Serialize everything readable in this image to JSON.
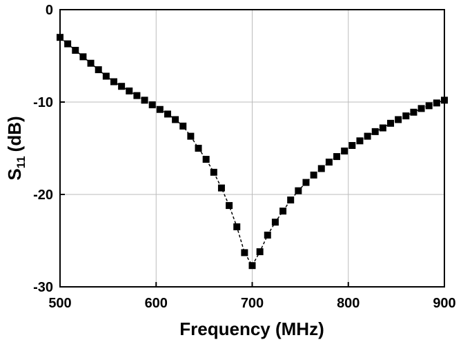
{
  "chart_data": {
    "type": "line",
    "x_label": "Frequency (MHz)",
    "y_label": "S",
    "y_label_subscript": "11",
    "y_label_suffix": "(dB)",
    "x": [
      500,
      508,
      516,
      524,
      532,
      540,
      548,
      556,
      564,
      572,
      580,
      588,
      596,
      604,
      612,
      620,
      628,
      636,
      644,
      652,
      660,
      668,
      676,
      684,
      692,
      700,
      708,
      716,
      724,
      732,
      740,
      748,
      756,
      764,
      772,
      780,
      788,
      796,
      804,
      812,
      820,
      828,
      836,
      844,
      852,
      860,
      868,
      876,
      884,
      892,
      900
    ],
    "series": [
      {
        "color": "#000000",
        "values": [
          -3.0,
          -3.7,
          -4.4,
          -5.1,
          -5.8,
          -6.5,
          -7.2,
          -7.8,
          -8.3,
          -8.8,
          -9.3,
          -9.8,
          -10.3,
          -10.8,
          -11.3,
          -11.9,
          -12.6,
          -13.7,
          -15.0,
          -16.2,
          -17.6,
          -19.3,
          -21.2,
          -23.5,
          -26.3,
          -27.7,
          -26.2,
          -24.4,
          -23.0,
          -21.8,
          -20.6,
          -19.6,
          -18.7,
          -17.9,
          -17.2,
          -16.5,
          -15.9,
          -15.3,
          -14.7,
          -14.2,
          -13.7,
          -13.2,
          -12.8,
          -12.3,
          -11.9,
          -11.5,
          -11.1,
          -10.7,
          -10.4,
          -10.1,
          -9.8
        ]
      }
    ],
    "xlim": [
      500,
      900
    ],
    "xticks": [
      500,
      600,
      700,
      800,
      900
    ],
    "ylim": [
      -30,
      0
    ],
    "yticks": [
      -30,
      -20,
      -10,
      0
    ],
    "grid": true
  }
}
